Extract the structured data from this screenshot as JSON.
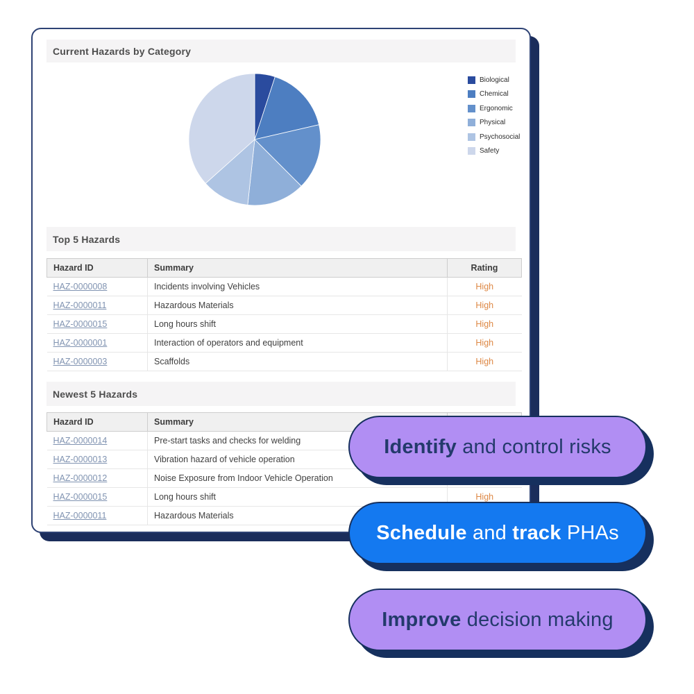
{
  "card": {
    "sections": {
      "chart_title": "Current Hazards by Category",
      "top5_title": "Top 5 Hazards",
      "newest5_title": "Newest 5 Hazards"
    },
    "table_headers": [
      "Hazard ID",
      "Summary",
      "Rating"
    ],
    "top5_rows": [
      {
        "id": "HAZ-0000008",
        "summary": "Incidents involving Vehicles",
        "rating": "High"
      },
      {
        "id": "HAZ-0000011",
        "summary": "Hazardous Materials",
        "rating": "High"
      },
      {
        "id": "HAZ-0000015",
        "summary": "Long hours shift",
        "rating": "High"
      },
      {
        "id": "HAZ-0000001",
        "summary": "Interaction of operators and equipment",
        "rating": "High"
      },
      {
        "id": "HAZ-0000003",
        "summary": "Scaffolds",
        "rating": "High"
      }
    ],
    "newest5_rows": [
      {
        "id": "HAZ-0000014",
        "summary": "Pre-start tasks and checks for welding",
        "rating": ""
      },
      {
        "id": "HAZ-0000013",
        "summary": "Vibration hazard of vehicle operation",
        "rating": ""
      },
      {
        "id": "HAZ-0000012",
        "summary": "Noise Exposure from Indoor Vehicle Operation",
        "rating": ""
      },
      {
        "id": "HAZ-0000015",
        "summary": "Long hours shift",
        "rating": "High"
      },
      {
        "id": "HAZ-0000011",
        "summary": "Hazardous Materials",
        "rating": ""
      }
    ]
  },
  "chart_data": {
    "type": "pie",
    "title": "Current Hazards by Category",
    "categories": [
      "Biological",
      "Chemical",
      "Ergonomic",
      "Physical",
      "Psychosocial",
      "Safety"
    ],
    "values": [
      5.0,
      16.4,
      16.1,
      14.2,
      11.7,
      36.6
    ],
    "unit": "percent of hazards",
    "colors": [
      "#2a4b9e",
      "#4d7ec1",
      "#6390cb",
      "#8fafd9",
      "#aec4e3",
      "#cdd7eb"
    ],
    "legend_position": "right",
    "start_angle_deg": 0,
    "direction": "clockwise"
  },
  "badges": [
    {
      "bg": "#b18ef3",
      "text_color": "#233a6b",
      "segments": [
        {
          "text": "Identify",
          "bold": true
        },
        {
          "text": " and control risks",
          "bold": false
        }
      ]
    },
    {
      "bg": "#1479f0",
      "text_color": "#ffffff",
      "segments": [
        {
          "text": "Schedule",
          "bold": true
        },
        {
          "text": " and ",
          "bold": false
        },
        {
          "text": "track",
          "bold": true
        },
        {
          "text": " PHAs",
          "bold": false
        }
      ]
    },
    {
      "bg": "#b18ef3",
      "text_color": "#233a6b",
      "segments": [
        {
          "text": "Improve",
          "bold": true
        },
        {
          "text": " decision making",
          "bold": false
        }
      ]
    }
  ],
  "colors": {
    "card_border": "#2e4274",
    "offset_shadow_navy": "#1b2d5b",
    "section_bar_bg": "#f5f4f5",
    "table_header_bg": "#f0f0f0",
    "hazard_link": "#8093b1",
    "rating_high": "#dd8743"
  }
}
